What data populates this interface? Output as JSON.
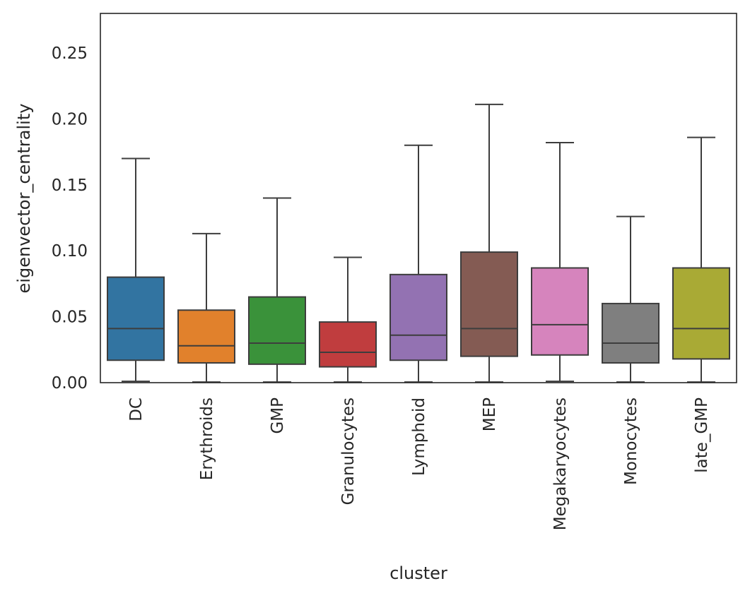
{
  "chart_data": {
    "type": "box",
    "title": "",
    "xlabel": "cluster",
    "ylabel": "eigenvector_centrality",
    "ylim": [
      0,
      0.28
    ],
    "yticks": [
      "0.00",
      "0.05",
      "0.10",
      "0.15",
      "0.20",
      "0.25"
    ],
    "grid": false,
    "categories": [
      "DC",
      "Erythroids",
      "GMP",
      "Granulocytes",
      "Lymphoid",
      "MEP",
      "Megakaryocytes",
      "Monocytes",
      "late_GMP"
    ],
    "boxes": [
      {
        "name": "DC",
        "color": "#3274a1",
        "whisker_low": 0.001,
        "q1": 0.017,
        "median": 0.041,
        "q3": 0.08,
        "whisker_high": 0.17
      },
      {
        "name": "Erythroids",
        "color": "#e1812c",
        "whisker_low": 0.0005,
        "q1": 0.015,
        "median": 0.028,
        "q3": 0.055,
        "whisker_high": 0.113
      },
      {
        "name": "GMP",
        "color": "#3a923a",
        "whisker_low": 0.0005,
        "q1": 0.014,
        "median": 0.03,
        "q3": 0.065,
        "whisker_high": 0.14
      },
      {
        "name": "Granulocytes",
        "color": "#c03d3e",
        "whisker_low": 0.0005,
        "q1": 0.012,
        "median": 0.023,
        "q3": 0.046,
        "whisker_high": 0.095
      },
      {
        "name": "Lymphoid",
        "color": "#9372b2",
        "whisker_low": 0.0005,
        "q1": 0.017,
        "median": 0.036,
        "q3": 0.082,
        "whisker_high": 0.18
      },
      {
        "name": "MEP",
        "color": "#845b53",
        "whisker_low": 0.0005,
        "q1": 0.02,
        "median": 0.041,
        "q3": 0.099,
        "whisker_high": 0.211
      },
      {
        "name": "Megakaryocytes",
        "color": "#d684bd",
        "whisker_low": 0.001,
        "q1": 0.021,
        "median": 0.044,
        "q3": 0.087,
        "whisker_high": 0.182
      },
      {
        "name": "Monocytes",
        "color": "#7f7f7f",
        "whisker_low": 0.0005,
        "q1": 0.015,
        "median": 0.03,
        "q3": 0.06,
        "whisker_high": 0.126
      },
      {
        "name": "late_GMP",
        "color": "#a9aa35",
        "whisker_low": 0.0005,
        "q1": 0.018,
        "median": 0.041,
        "q3": 0.087,
        "whisker_high": 0.186
      }
    ]
  }
}
